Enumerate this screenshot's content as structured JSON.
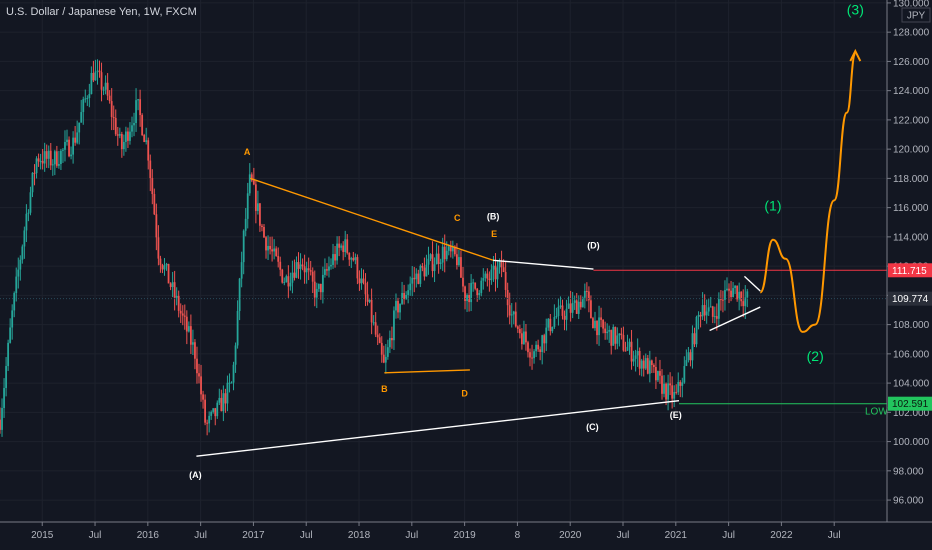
{
  "header": {
    "title": "U.S. Dollar / Japanese Yen, 1W, FXCM",
    "currency": "JPY"
  },
  "chart_data": {
    "type": "candlestick",
    "title": "U.S. Dollar / Japanese Yen, 1W, FXCM",
    "ylim": [
      94.5,
      130.2
    ],
    "y_ticks": [
      "96.000",
      "98.000",
      "100.000",
      "102.000",
      "104.000",
      "106.000",
      "108.000",
      "110.000",
      "112.000",
      "114.000",
      "116.000",
      "118.000",
      "120.000",
      "122.000",
      "124.000",
      "126.000",
      "128.000",
      "130.000"
    ],
    "x_ticks": [
      {
        "label": "2015",
        "t": 2015.0
      },
      {
        "label": "Jul",
        "t": 2015.5
      },
      {
        "label": "2016",
        "t": 2016.0
      },
      {
        "label": "Jul",
        "t": 2016.5
      },
      {
        "label": "2017",
        "t": 2017.0
      },
      {
        "label": "Jul",
        "t": 2017.5
      },
      {
        "label": "2018",
        "t": 2018.0
      },
      {
        "label": "Jul",
        "t": 2018.5
      },
      {
        "label": "2019",
        "t": 2019.0
      },
      {
        "label": "8",
        "t": 2019.5
      },
      {
        "label": "2020",
        "t": 2020.0
      },
      {
        "label": "Jul",
        "t": 2020.5
      },
      {
        "label": "2021",
        "t": 2021.0
      },
      {
        "label": "Jul",
        "t": 2021.5
      },
      {
        "label": "2022",
        "t": 2022.0
      },
      {
        "label": "Jul",
        "t": 2022.5
      }
    ],
    "xlim": [
      2014.6,
      2023.0
    ],
    "price_anchors": [
      [
        2014.6,
        101.5
      ],
      [
        2014.72,
        109.0
      ],
      [
        2014.85,
        115.5
      ],
      [
        2014.95,
        119.5
      ],
      [
        2015.1,
        119.2
      ],
      [
        2015.3,
        120.5
      ],
      [
        2015.45,
        124.5
      ],
      [
        2015.48,
        125.3
      ],
      [
        2015.6,
        124.0
      ],
      [
        2015.75,
        120.0
      ],
      [
        2015.9,
        123.0
      ],
      [
        2016.0,
        120.0
      ],
      [
        2016.1,
        113.0
      ],
      [
        2016.3,
        109.0
      ],
      [
        2016.45,
        106.0
      ],
      [
        2016.55,
        101.0
      ],
      [
        2016.65,
        102.0
      ],
      [
        2016.8,
        104.0
      ],
      [
        2016.9,
        113.5
      ],
      [
        2016.97,
        118.0
      ],
      [
        2017.1,
        114.0
      ],
      [
        2017.3,
        111.0
      ],
      [
        2017.45,
        112.5
      ],
      [
        2017.6,
        110.0
      ],
      [
        2017.75,
        112.5
      ],
      [
        2017.85,
        113.5
      ],
      [
        2017.95,
        112.5
      ],
      [
        2018.1,
        109.0
      ],
      [
        2018.2,
        106.0
      ],
      [
        2018.24,
        105.0
      ],
      [
        2018.35,
        109.0
      ],
      [
        2018.5,
        111.0
      ],
      [
        2018.65,
        112.0
      ],
      [
        2018.8,
        113.0
      ],
      [
        2018.93,
        112.5
      ],
      [
        2019.0,
        110.0
      ],
      [
        2019.1,
        110.5
      ],
      [
        2019.3,
        111.5
      ],
      [
        2019.35,
        112.0
      ],
      [
        2019.45,
        108.5
      ],
      [
        2019.65,
        106.0
      ],
      [
        2019.85,
        108.5
      ],
      [
        2020.0,
        109.0
      ],
      [
        2020.15,
        110.0
      ],
      [
        2020.2,
        108.5
      ],
      [
        2020.25,
        108.0
      ],
      [
        2020.32,
        107.5
      ],
      [
        2020.45,
        107.0
      ],
      [
        2020.6,
        106.0
      ],
      [
        2020.75,
        105.0
      ],
      [
        2020.9,
        103.5
      ],
      [
        2021.0,
        103.0
      ],
      [
        2021.15,
        106.5
      ],
      [
        2021.25,
        109.5
      ],
      [
        2021.35,
        108.5
      ],
      [
        2021.45,
        110.0
      ],
      [
        2021.55,
        110.5
      ],
      [
        2021.65,
        109.8
      ],
      [
        2021.68,
        109.774
      ]
    ],
    "annotations": {
      "triangle_lines": [
        {
          "color": "#ff9800",
          "points": [
            [
              2016.97,
              118.0
            ],
            [
              2019.27,
              112.4
            ]
          ]
        },
        {
          "color": "#ff9800",
          "points": [
            [
              2018.24,
              104.7
            ],
            [
              2019.05,
              104.9
            ]
          ]
        },
        {
          "color": "#ffffff",
          "points": [
            [
              2019.27,
              112.4
            ],
            [
              2020.22,
              111.8
            ]
          ]
        },
        {
          "color": "#ffffff",
          "points": [
            [
              2016.46,
              99.0
            ],
            [
              2021.03,
              102.8
            ]
          ]
        },
        {
          "color": "#ffffff",
          "points": [
            [
              2021.65,
              111.3
            ],
            [
              2021.8,
              110.3
            ]
          ]
        },
        {
          "color": "#ffffff",
          "points": [
            [
              2021.32,
              107.6
            ],
            [
              2021.8,
              109.2
            ]
          ]
        }
      ],
      "projection": {
        "color": "#ff9800",
        "points": [
          [
            2021.8,
            110.2
          ],
          [
            2021.92,
            113.8
          ],
          [
            2022.04,
            112.5
          ],
          [
            2022.2,
            107.5
          ],
          [
            2022.32,
            108.0
          ],
          [
            2022.5,
            116.5
          ],
          [
            2022.62,
            122.5
          ],
          [
            2022.7,
            126.5
          ]
        ]
      },
      "wave_labels": [
        {
          "text": "A",
          "t": 2016.94,
          "p": 119.6,
          "color": "#ff9800"
        },
        {
          "text": "B",
          "t": 2018.24,
          "p": 103.4,
          "color": "#ff9800"
        },
        {
          "text": "C",
          "t": 2018.93,
          "p": 115.1,
          "color": "#ff9800"
        },
        {
          "text": "D",
          "t": 2019.0,
          "p": 103.1,
          "color": "#ff9800"
        },
        {
          "text": "E",
          "t": 2019.28,
          "p": 114.0,
          "color": "#ff9800"
        },
        {
          "text": "(A)",
          "t": 2016.45,
          "p": 97.5,
          "color": "#ffffff"
        },
        {
          "text": "(B)",
          "t": 2019.27,
          "p": 115.2,
          "color": "#ffffff"
        },
        {
          "text": "(C)",
          "t": 2020.21,
          "p": 100.8,
          "color": "#ffffff"
        },
        {
          "text": "(D)",
          "t": 2020.22,
          "p": 113.2,
          "color": "#ffffff"
        },
        {
          "text": "(E)",
          "t": 2021.0,
          "p": 101.6,
          "color": "#ffffff"
        }
      ],
      "wave_targets": [
        {
          "text": "(1)",
          "t": 2021.92,
          "p": 115.8,
          "color": "#00e676"
        },
        {
          "text": "(2)",
          "t": 2022.32,
          "p": 105.5,
          "color": "#00e676"
        },
        {
          "text": "(3)",
          "t": 2022.7,
          "p": 129.2,
          "color": "#00e676"
        }
      ],
      "hlines": [
        {
          "value": 111.715,
          "color": "#f23645",
          "from": 2020.22
        },
        {
          "value": 102.591,
          "color": "#22c55e",
          "from": 2021.03,
          "label": "LOW"
        }
      ]
    },
    "price_tags": [
      {
        "label": "111.715",
        "value": 111.715,
        "bg": "#f23645",
        "fg": "#ffffff"
      },
      {
        "label": "109.774",
        "value": 109.774,
        "bg": "#2a2e39",
        "fg": "#ffffff"
      },
      {
        "label": "102.591",
        "value": 102.591,
        "bg": "#22c55e",
        "fg": "#0b1a10"
      }
    ],
    "colors": {
      "up": "#26a69a",
      "down": "#ef5350",
      "axis": "#787b86",
      "background": "#131722"
    }
  }
}
